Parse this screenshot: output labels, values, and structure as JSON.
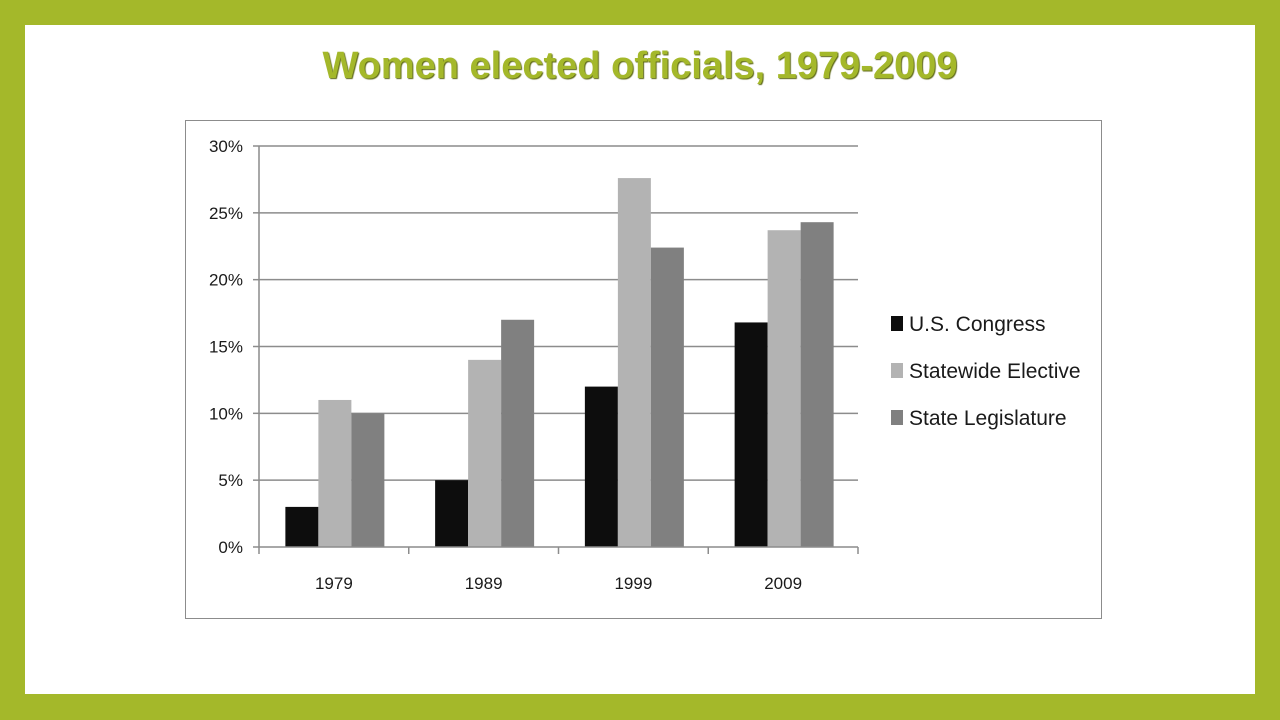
{
  "chart_data": {
    "type": "bar",
    "title": "Women elected officials, 1979-2009",
    "xlabel": "",
    "ylabel": "",
    "categories": [
      "1979",
      "1989",
      "1999",
      "2009"
    ],
    "series": [
      {
        "name": "U.S. Congress",
        "values": [
          3,
          5,
          12,
          16.8
        ],
        "color": "#0d0d0d"
      },
      {
        "name": "Statewide Elective",
        "values": [
          11,
          14,
          27.6,
          23.7
        ],
        "color": "#b3b3b3"
      },
      {
        "name": "State Legislature",
        "values": [
          10,
          17,
          22.4,
          24.3
        ],
        "color": "#808080"
      }
    ],
    "ylim": [
      0,
      30
    ],
    "yticks": [
      "0%",
      "5%",
      "10%",
      "15%",
      "20%",
      "25%",
      "30%"
    ],
    "ytick_values": [
      0,
      5,
      10,
      15,
      20,
      25,
      30
    ],
    "grid": true,
    "legend_position": "right",
    "colors": {
      "background": "#a4b82a",
      "title": "#a4b82a",
      "grid": "#8c8c8c"
    }
  }
}
